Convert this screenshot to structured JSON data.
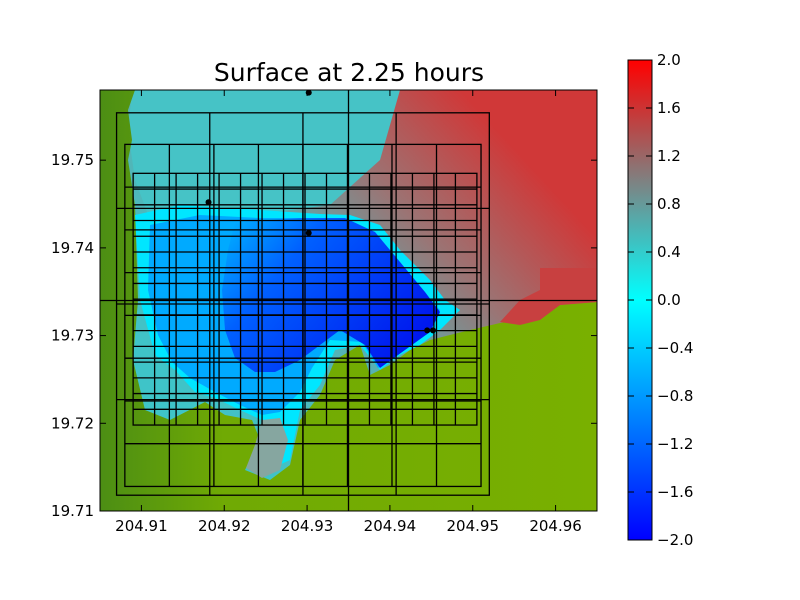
{
  "chart_data": {
    "type": "heatmap",
    "title": "Surface at 2.25 hours",
    "xlabel": "",
    "ylabel": "",
    "xlim": [
      204.905,
      204.965
    ],
    "ylim": [
      19.71,
      19.758
    ],
    "x_ticks": [
      "204.91",
      "204.92",
      "204.93",
      "204.94",
      "204.95",
      "204.96"
    ],
    "y_ticks": [
      "19.71",
      "19.72",
      "19.73",
      "19.74",
      "19.75"
    ],
    "x_tick_values": [
      204.91,
      204.92,
      204.93,
      204.94,
      204.95,
      204.96
    ],
    "y_tick_values": [
      19.71,
      19.72,
      19.73,
      19.74,
      19.75
    ],
    "colorbar": {
      "range": [
        -2.0,
        2.0
      ],
      "ticks": [
        "−2.0",
        "−1.6",
        "−1.2",
        "−0.8",
        "−0.4",
        "0.0",
        "0.4",
        "0.8",
        "1.2",
        "1.6",
        "2.0"
      ],
      "tick_values": [
        -2.0,
        -1.6,
        -1.2,
        -0.8,
        -0.4,
        0.0,
        0.4,
        0.8,
        1.2,
        1.6,
        2.0
      ],
      "colormap": [
        "#0000ff",
        "#00ffff",
        "#808080",
        "#ff0000"
      ]
    },
    "colors": {
      "land": "#74ad00",
      "land_dark": "#4f8f12",
      "deep_water": "#0033ee",
      "shallow_water": "#00ddff",
      "offshore_high": "#c83c3c",
      "offshore_mid": "#b85a5a",
      "northwest_water": "#48c2c2"
    },
    "gauges": [
      {
        "x": 204.9302,
        "y": 19.7577
      },
      {
        "x": 204.9181,
        "y": 19.7452
      },
      {
        "x": 204.9302,
        "y": 19.7417
      },
      {
        "x": 204.9445,
        "y": 19.7306
      },
      {
        "x": 204.9452,
        "y": 19.7306
      }
    ],
    "reference_lines": {
      "x": 204.935,
      "y": 19.734
    },
    "grid_patches": [
      {
        "x": [
          204.907,
          204.952
        ],
        "y": [
          19.7118,
          19.7554
        ],
        "nx": 4,
        "ny": 4
      },
      {
        "x": [
          204.908,
          204.951
        ],
        "y": [
          19.7128,
          19.7518
        ],
        "nx": 8,
        "ny": 8
      },
      {
        "x": [
          204.909,
          204.9505
        ],
        "y": [
          19.7198,
          19.7485
        ],
        "nx": 16,
        "ny": 16
      }
    ]
  }
}
